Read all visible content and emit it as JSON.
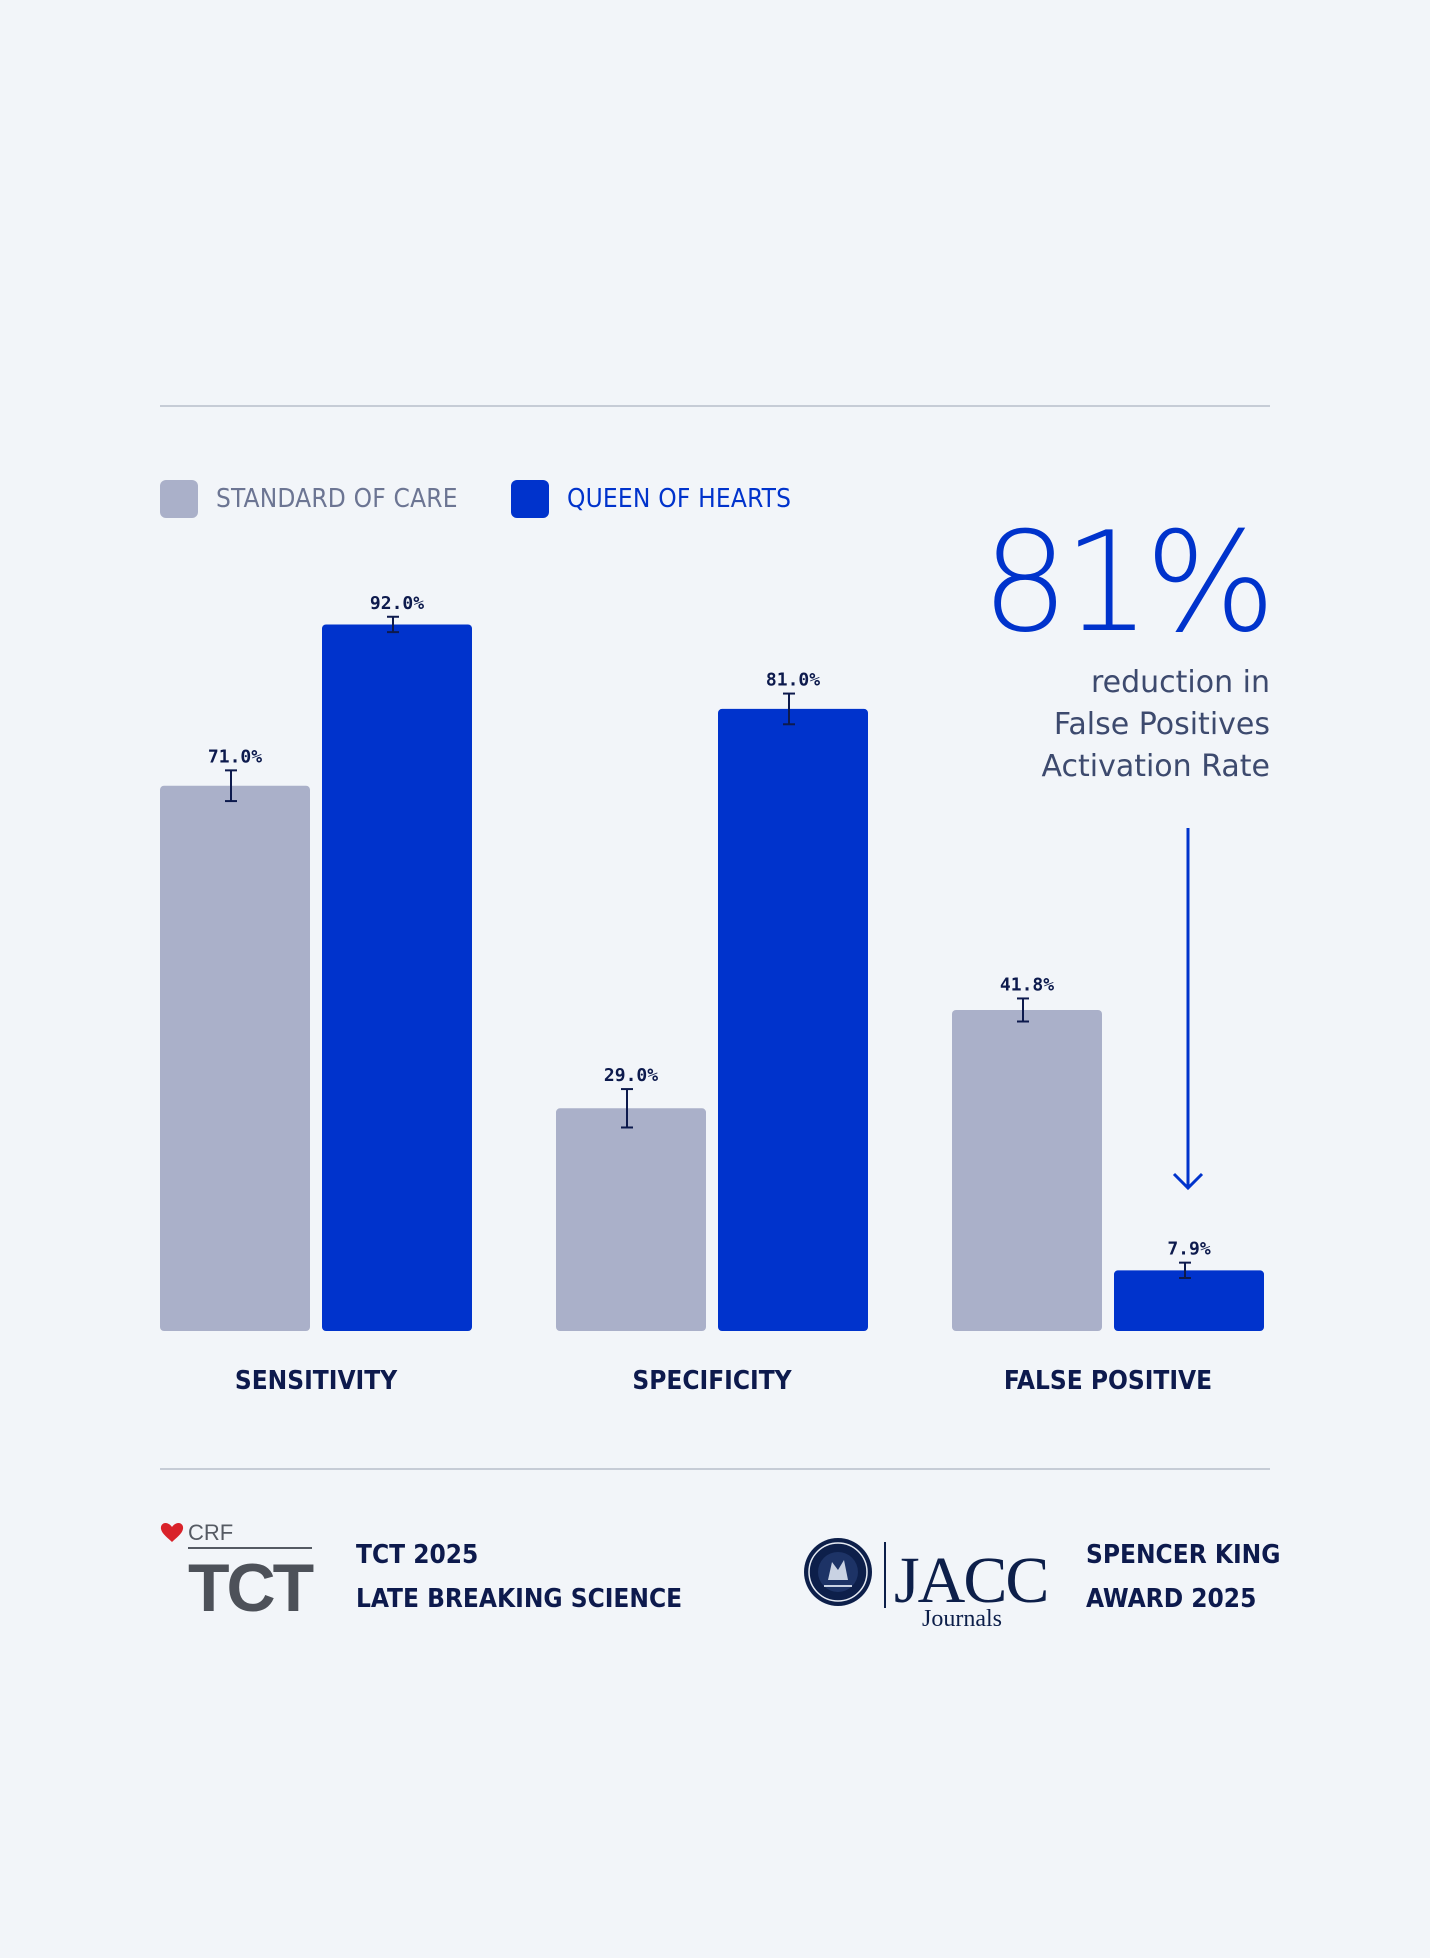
{
  "legend": [
    {
      "label": "STANDARD OF CARE",
      "color": "#aab0c9",
      "text_color": "#6c7593"
    },
    {
      "label": "QUEEN OF HEARTS",
      "color": "#0033cc",
      "text_color": "#0033cc"
    }
  ],
  "callout": {
    "value": "81%",
    "lines": [
      "reduction in",
      "False Positives",
      "Activation Rate"
    ]
  },
  "chart_data": {
    "type": "bar",
    "categories": [
      "SENSITIVITY",
      "SPECIFICITY",
      "FALSE POSITIVE"
    ],
    "series": [
      {
        "name": "STANDARD OF CARE",
        "color": "#aab0c9",
        "values": [
          71.0,
          29.0,
          41.8
        ],
        "labels": [
          "71.0%",
          "29.0%",
          "41.8%"
        ],
        "error": [
          2.0,
          2.5,
          1.5
        ]
      },
      {
        "name": "QUEEN OF HEARTS",
        "color": "#0033cc",
        "values": [
          92.0,
          81.0,
          7.9
        ],
        "labels": [
          "92.0%",
          "81.0%",
          "7.9%"
        ],
        "error": [
          1.0,
          2.0,
          1.0
        ]
      }
    ],
    "ylim": [
      0,
      100
    ],
    "grid": false,
    "legend_position": "top-left",
    "error_bars": true,
    "annotation": {
      "text": "81%",
      "target_category": "FALSE POSITIVE",
      "arrow": "down"
    }
  },
  "footer": {
    "left_logo": {
      "brand_top": "CRF",
      "brand_main": "TCT"
    },
    "left_lines": [
      "TCT 2025",
      "LATE BREAKING SCIENCE"
    ],
    "right_logo": {
      "brand_main": "JACC",
      "brand_sub": "Journals",
      "seal": "AMERICAN COLLEGE OF CARDIOLOGY"
    },
    "right_lines": [
      "SPENCER KING",
      "AWARD 2025"
    ]
  },
  "colors": {
    "background": "#f2f5f9",
    "accent": "#0033cc",
    "muted_bar": "#aab0c9",
    "dark_text": "#0d1a4d",
    "rule": "#c6ccd6"
  }
}
